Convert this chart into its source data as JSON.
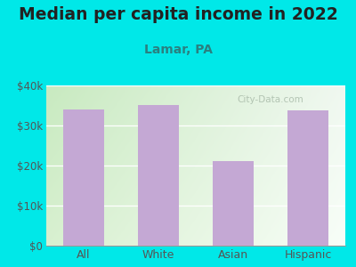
{
  "title": "Median per capita income in 2022",
  "subtitle": "Lamar, PA",
  "categories": [
    "All",
    "White",
    "Asian",
    "Hispanic"
  ],
  "values": [
    34000,
    35200,
    21200,
    33800
  ],
  "bar_color": "#c4a8d4",
  "outer_bg": "#00e8e8",
  "plot_bg_topleft": "#c8eac0",
  "plot_bg_topright": "#e8f4f0",
  "plot_bg_bottomleft": "#d8f0d0",
  "plot_bg_bottomright": "#f8fef8",
  "title_color": "#222222",
  "subtitle_color": "#2a8080",
  "tick_color": "#555555",
  "ylim": [
    0,
    40000
  ],
  "yticks": [
    0,
    10000,
    20000,
    30000,
    40000
  ],
  "ytick_labels": [
    "$0",
    "$10k",
    "$20k",
    "$30k",
    "$40k"
  ],
  "watermark_text": "City-Data.com",
  "watermark_color": "#aabcaa",
  "grid_color": "#ffffff",
  "title_fontsize": 13.5,
  "subtitle_fontsize": 10,
  "tick_fontsize": 8.5,
  "xtick_fontsize": 9
}
